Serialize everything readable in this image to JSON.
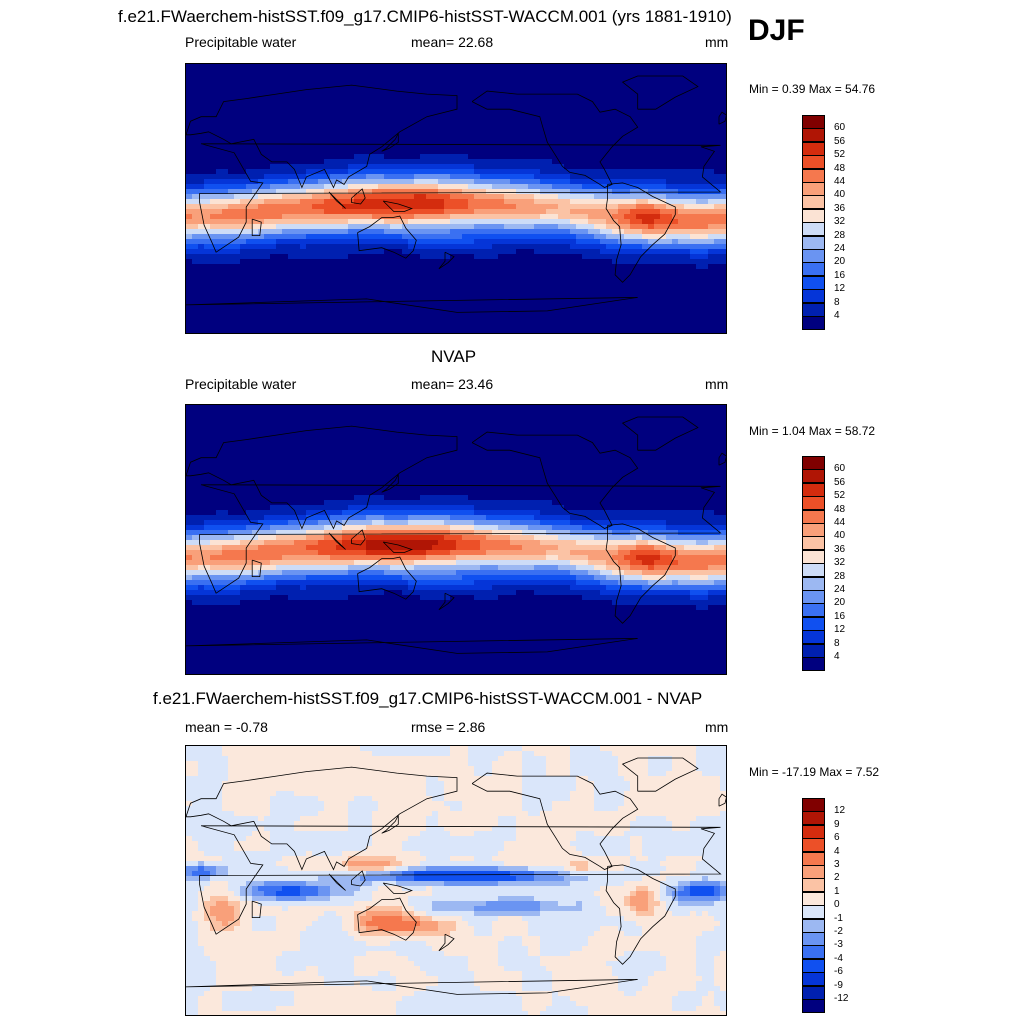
{
  "figure": {
    "title": "f.e21.FWaerchem-histSST.f09_g17.CMIP6-histSST-WACCM.001 (yrs 1881-1910)",
    "season": "DJF"
  },
  "panels": [
    {
      "title": "",
      "left_label": "Precipitable water",
      "center_label": "mean=  22.68",
      "units": "mm",
      "minmax": "Min =   0.39 Max =  54.76",
      "legend_values": [
        "60",
        "56",
        "52",
        "48",
        "44",
        "40",
        "36",
        "32",
        "28",
        "24",
        "20",
        "16",
        "12",
        "8",
        "4"
      ],
      "variant": 0
    },
    {
      "title": "NVAP",
      "left_label": "Precipitable water",
      "center_label": "mean=  23.46",
      "units": "mm",
      "minmax": "Min =   1.04 Max =  58.72",
      "legend_values": [
        "60",
        "56",
        "52",
        "48",
        "44",
        "40",
        "36",
        "32",
        "28",
        "24",
        "20",
        "16",
        "12",
        "8",
        "4"
      ],
      "variant": 1
    },
    {
      "title": "f.e21.FWaerchem-histSST.f09_g17.CMIP6-histSST-WACCM.001 - NVAP",
      "left_label": "mean =  -0.78",
      "center_label": "rmse =   2.86",
      "units": "mm",
      "minmax": "Min = -17.19 Max =   7.52",
      "legend_values": [
        "12",
        "9",
        "6",
        "4",
        "3",
        "2",
        "1",
        "0",
        "-1",
        "-2",
        "-3",
        "-4",
        "-6",
        "-9",
        "-12"
      ],
      "variant": 2
    }
  ],
  "colors": {
    "abs_scale": [
      "#00007f",
      "#0020b0",
      "#0535d8",
      "#1050f0",
      "#3a70f2",
      "#6a94f2",
      "#9cb8f2",
      "#cddcf7",
      "#fbe3d4",
      "#fbc3a5",
      "#f9a07a",
      "#f5784e",
      "#ec5028",
      "#d42c0e",
      "#b01505",
      "#800000"
    ],
    "diff_scale": [
      "#00007f",
      "#0020b0",
      "#0535d8",
      "#1050f0",
      "#3a70f2",
      "#6a94f2",
      "#9cb8f2",
      "#dae6fa",
      "#fbe8dc",
      "#fbc3a5",
      "#f9a07a",
      "#f5784e",
      "#ec5028",
      "#d42c0e",
      "#b01505",
      "#800000"
    ]
  }
}
